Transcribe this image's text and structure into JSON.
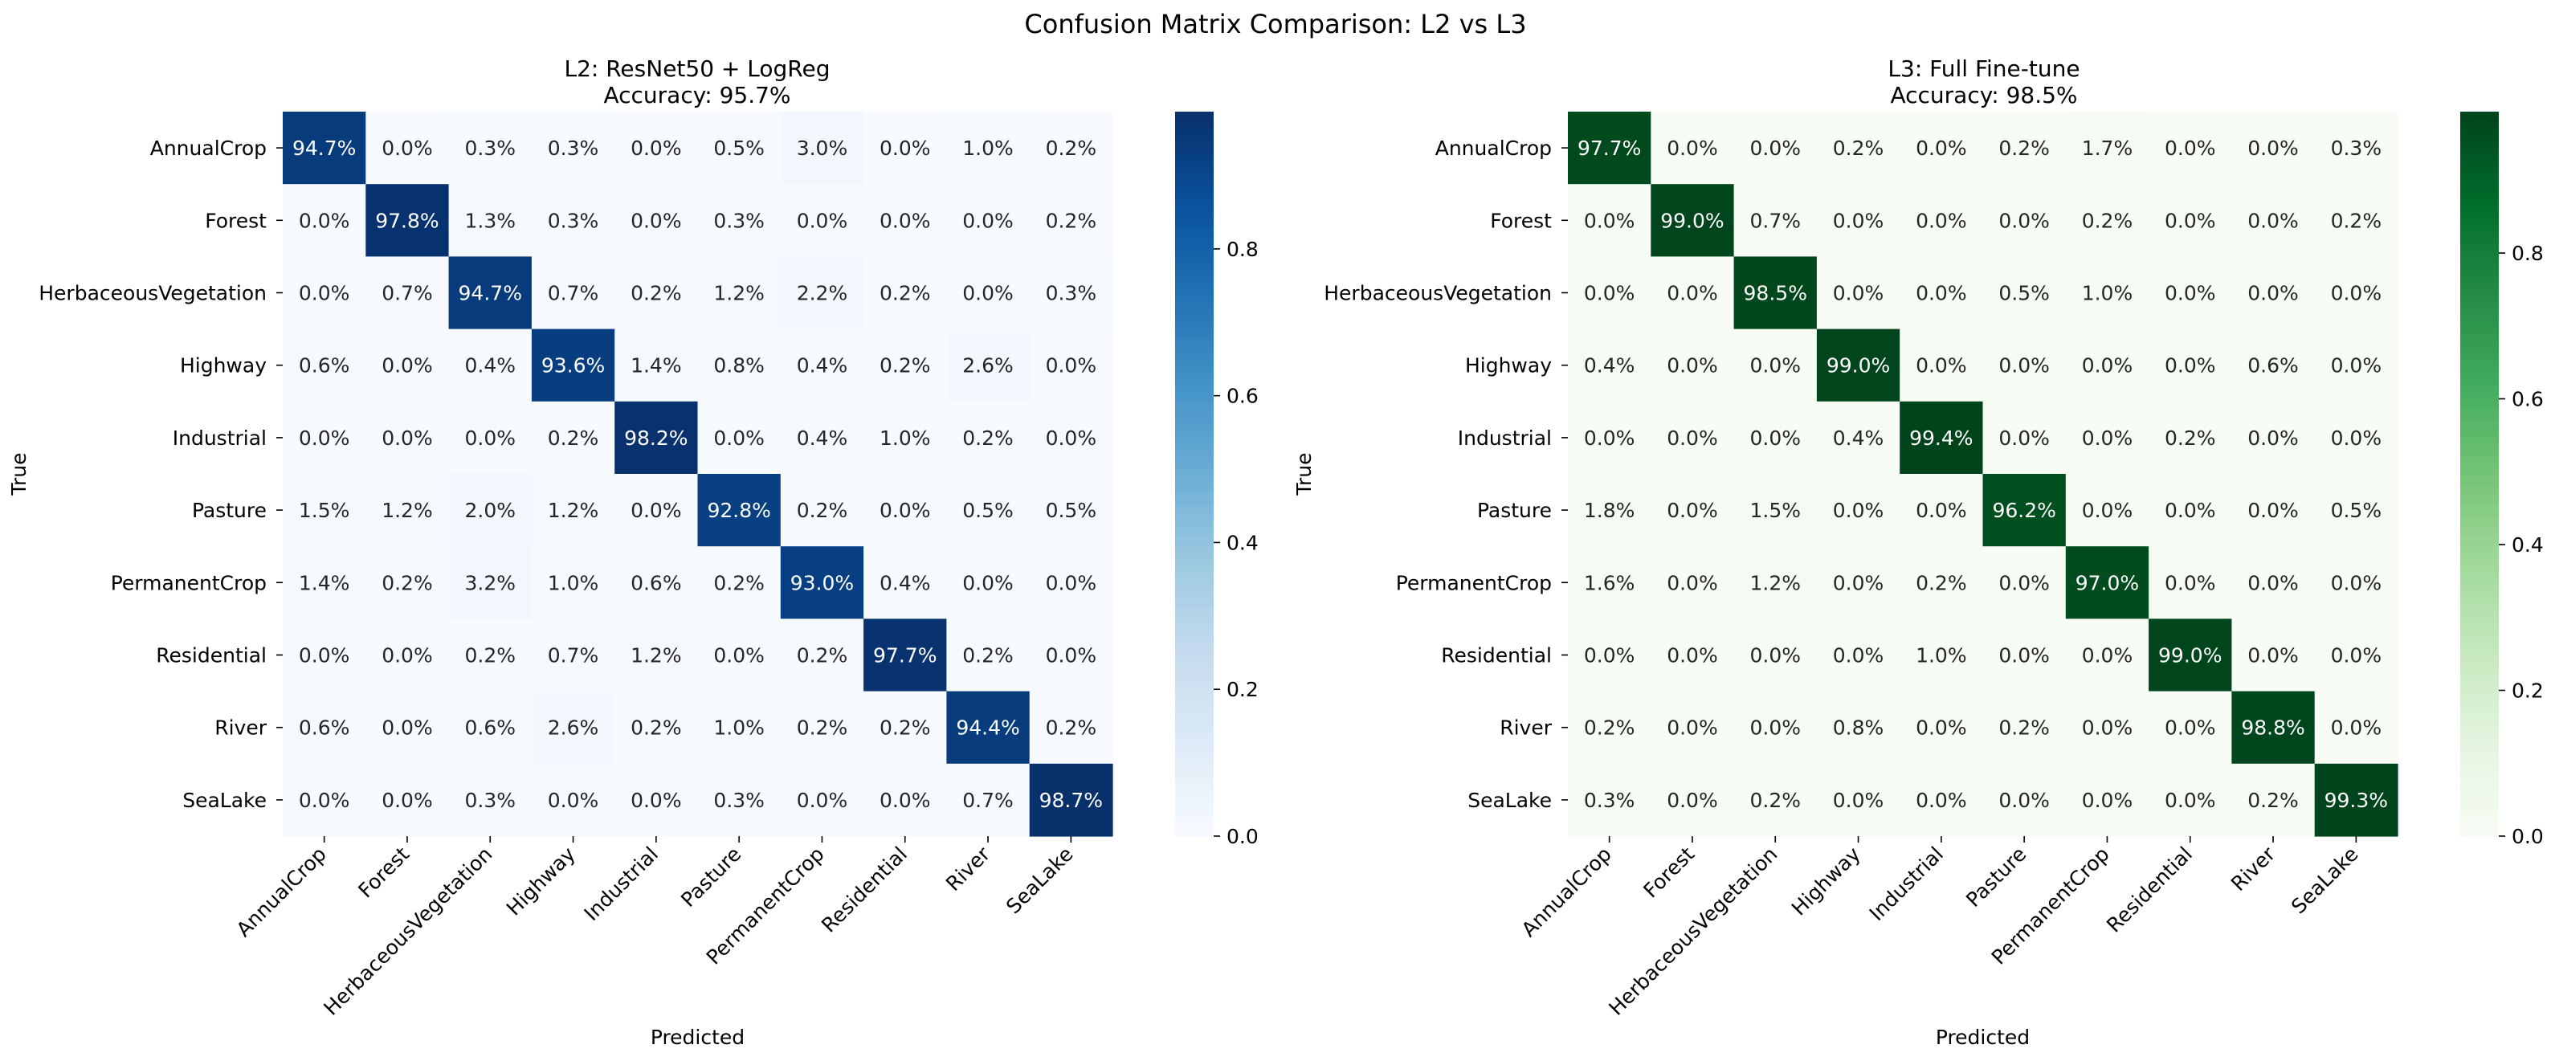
{
  "title": "Confusion Matrix Comparison: L2 vs L3",
  "chart_data": [
    {
      "type": "heatmap",
      "title": "L2: ResNet50 + LogReg",
      "subtitle": "Accuracy: 95.7%",
      "xlabel": "Predicted",
      "ylabel": "True",
      "colormap": "Blues",
      "colors": {
        "low": "#f7fbff",
        "high": "#08306b"
      },
      "colorbar_ticks": [
        "0.0",
        "0.2",
        "0.4",
        "0.6",
        "0.8"
      ],
      "colorbar_range": [
        0,
        0.987
      ],
      "categories": [
        "AnnualCrop",
        "Forest",
        "HerbaceousVegetation",
        "Highway",
        "Industrial",
        "Pasture",
        "PermanentCrop",
        "Residential",
        "River",
        "SeaLake"
      ],
      "values": [
        [
          94.7,
          0.0,
          0.3,
          0.3,
          0.0,
          0.5,
          3.0,
          0.0,
          1.0,
          0.2
        ],
        [
          0.0,
          97.8,
          1.3,
          0.3,
          0.0,
          0.3,
          0.0,
          0.0,
          0.0,
          0.2
        ],
        [
          0.0,
          0.7,
          94.7,
          0.7,
          0.2,
          1.2,
          2.2,
          0.2,
          0.0,
          0.3
        ],
        [
          0.6,
          0.0,
          0.4,
          93.6,
          1.4,
          0.8,
          0.4,
          0.2,
          2.6,
          0.0
        ],
        [
          0.0,
          0.0,
          0.0,
          0.2,
          98.2,
          0.0,
          0.4,
          1.0,
          0.2,
          0.0
        ],
        [
          1.5,
          1.2,
          2.0,
          1.2,
          0.0,
          92.8,
          0.2,
          0.0,
          0.5,
          0.5
        ],
        [
          1.4,
          0.2,
          3.2,
          1.0,
          0.6,
          0.2,
          93.0,
          0.4,
          0.0,
          0.0
        ],
        [
          0.0,
          0.0,
          0.2,
          0.7,
          1.2,
          0.0,
          0.2,
          97.7,
          0.2,
          0.0
        ],
        [
          0.6,
          0.0,
          0.6,
          2.6,
          0.2,
          1.0,
          0.2,
          0.2,
          94.4,
          0.2
        ],
        [
          0.0,
          0.0,
          0.3,
          0.0,
          0.0,
          0.3,
          0.0,
          0.0,
          0.7,
          98.7
        ]
      ]
    },
    {
      "type": "heatmap",
      "title": "L3: Full Fine-tune",
      "subtitle": "Accuracy: 98.5%",
      "xlabel": "Predicted",
      "ylabel": "True",
      "colormap": "Greens",
      "colors": {
        "low": "#f7fcf5",
        "high": "#00441b"
      },
      "colorbar_ticks": [
        "0.0",
        "0.2",
        "0.4",
        "0.6",
        "0.8"
      ],
      "colorbar_range": [
        0,
        0.994
      ],
      "categories": [
        "AnnualCrop",
        "Forest",
        "HerbaceousVegetation",
        "Highway",
        "Industrial",
        "Pasture",
        "PermanentCrop",
        "Residential",
        "River",
        "SeaLake"
      ],
      "values": [
        [
          97.7,
          0.0,
          0.0,
          0.2,
          0.0,
          0.2,
          1.7,
          0.0,
          0.0,
          0.3
        ],
        [
          0.0,
          99.0,
          0.7,
          0.0,
          0.0,
          0.0,
          0.2,
          0.0,
          0.0,
          0.2
        ],
        [
          0.0,
          0.0,
          98.5,
          0.0,
          0.0,
          0.5,
          1.0,
          0.0,
          0.0,
          0.0
        ],
        [
          0.4,
          0.0,
          0.0,
          99.0,
          0.0,
          0.0,
          0.0,
          0.0,
          0.6,
          0.0
        ],
        [
          0.0,
          0.0,
          0.0,
          0.4,
          99.4,
          0.0,
          0.0,
          0.2,
          0.0,
          0.0
        ],
        [
          1.8,
          0.0,
          1.5,
          0.0,
          0.0,
          96.2,
          0.0,
          0.0,
          0.0,
          0.5
        ],
        [
          1.6,
          0.0,
          1.2,
          0.0,
          0.2,
          0.0,
          97.0,
          0.0,
          0.0,
          0.0
        ],
        [
          0.0,
          0.0,
          0.0,
          0.0,
          1.0,
          0.0,
          0.0,
          99.0,
          0.0,
          0.0
        ],
        [
          0.2,
          0.0,
          0.0,
          0.8,
          0.0,
          0.2,
          0.0,
          0.0,
          98.8,
          0.0
        ],
        [
          0.3,
          0.0,
          0.2,
          0.0,
          0.0,
          0.0,
          0.0,
          0.0,
          0.2,
          99.3
        ]
      ]
    }
  ]
}
